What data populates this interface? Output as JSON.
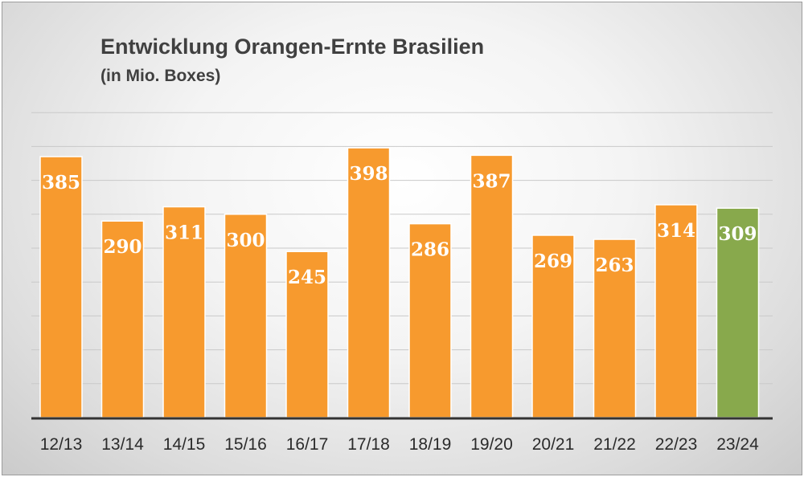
{
  "chart_data": {
    "type": "bar",
    "title": "Entwicklung Orangen-Ernte Brasilien",
    "subtitle": "(in Mio. Boxes)",
    "categories": [
      "12/13",
      "13/14",
      "14/15",
      "15/16",
      "16/17",
      "17/18",
      "18/19",
      "19/20",
      "20/21",
      "21/22",
      "22/23",
      "23/24"
    ],
    "values": [
      385,
      290,
      311,
      300,
      245,
      398,
      286,
      387,
      269,
      263,
      314,
      309
    ],
    "data_labels": [
      "385",
      "290",
      "311",
      "300",
      "245",
      "398",
      "286",
      "387",
      "269",
      "263",
      "314",
      "309"
    ],
    "ylim": [
      0,
      450
    ],
    "grid": true,
    "legend": "none",
    "colors": {
      "bar": "#f79a2e",
      "highlight": "#88a94c",
      "baseline": "#333333",
      "grid": "#c9c9c9"
    },
    "highlight_index": 11
  }
}
